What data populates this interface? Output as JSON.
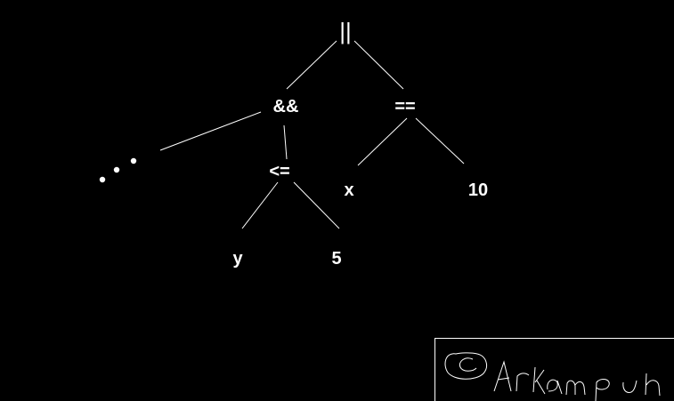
{
  "tree": {
    "nodes": [
      {
        "id": "or",
        "label": "||"
      },
      {
        "id": "and",
        "label": "&&"
      },
      {
        "id": "eq",
        "label": "=="
      },
      {
        "id": "le",
        "label": "<="
      },
      {
        "id": "x",
        "label": "x"
      },
      {
        "id": "ten",
        "label": "10"
      },
      {
        "id": "y",
        "label": "y"
      },
      {
        "id": "five",
        "label": "5"
      }
    ],
    "edges": [
      [
        "or",
        "and"
      ],
      [
        "or",
        "eq"
      ],
      [
        "and",
        "ellipsis"
      ],
      [
        "and",
        "le"
      ],
      [
        "eq",
        "x"
      ],
      [
        "eq",
        "ten"
      ],
      [
        "le",
        "y"
      ],
      [
        "le",
        "five"
      ]
    ],
    "ellipsis_dots": 3
  },
  "signature": {
    "text": "Arkam ph"
  }
}
